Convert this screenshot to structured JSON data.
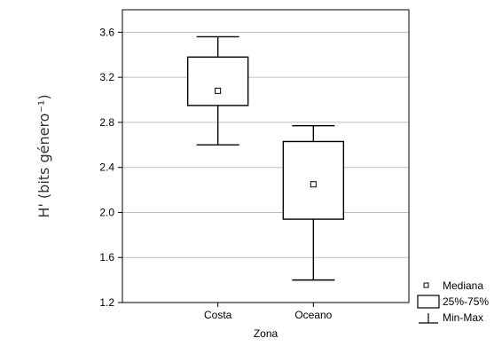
{
  "chart_data": {
    "type": "boxplot",
    "xlabel": "Zona",
    "ylabel": "H' (bits género⁻¹)",
    "ylim": [
      1.2,
      3.8
    ],
    "yticks": [
      "1.2",
      "1.6",
      "2.0",
      "2.4",
      "2.8",
      "3.2",
      "3.6"
    ],
    "ytick_values": [
      1.2,
      1.6,
      2.0,
      2.4,
      2.8,
      3.2,
      3.6
    ],
    "categories": [
      "Costa",
      "Oceano"
    ],
    "boxes": [
      {
        "category": "Costa",
        "min": 2.6,
        "q1": 2.95,
        "median": 3.08,
        "q3": 3.38,
        "max": 3.56
      },
      {
        "category": "Oceano",
        "min": 1.4,
        "q1": 1.94,
        "median": 2.25,
        "q3": 2.63,
        "max": 2.77
      }
    ],
    "grid": true,
    "legend_position": "bottom-right",
    "legend": [
      {
        "label": "Mediana",
        "symbol": "square-marker"
      },
      {
        "label": "25%-75%",
        "symbol": "box"
      },
      {
        "label": "Min-Max",
        "symbol": "whisker"
      }
    ],
    "colors": {
      "stroke": "#000000",
      "grid": "#bfbfbf",
      "box_fill": "#ffffff",
      "text": "#000000",
      "ylabel": "#333333"
    }
  }
}
